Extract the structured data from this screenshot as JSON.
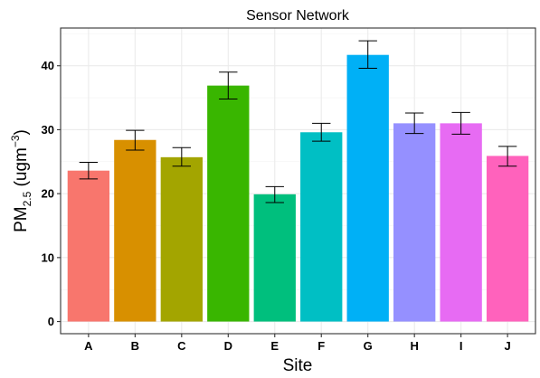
{
  "chart_data": {
    "type": "bar",
    "title": "Sensor Network",
    "xlabel": "Site",
    "ylabel": {
      "main": "PM",
      "sub": "2.5",
      "unit_open": " (ugm",
      "unit_sup": "−3",
      "unit_close": ")"
    },
    "categories": [
      "A",
      "B",
      "C",
      "D",
      "E",
      "F",
      "G",
      "H",
      "I",
      "J"
    ],
    "values": [
      23.6,
      28.4,
      25.7,
      36.9,
      19.9,
      29.6,
      41.7,
      31.0,
      31.0,
      25.9
    ],
    "error_lower": [
      22.3,
      26.8,
      24.3,
      34.8,
      18.6,
      28.2,
      39.6,
      29.4,
      29.3,
      24.3
    ],
    "error_upper": [
      24.9,
      29.9,
      27.2,
      39.0,
      21.1,
      31.0,
      43.9,
      32.6,
      32.7,
      27.4
    ],
    "colors": [
      "#F8766D",
      "#D89000",
      "#A3A500",
      "#39B600",
      "#00BF7D",
      "#00BFC4",
      "#00B0F6",
      "#9590FF",
      "#E76BF3",
      "#FF62BC"
    ],
    "ylim": [
      -1.9,
      45.9
    ],
    "yticks": [
      0,
      10,
      20,
      30,
      40
    ],
    "grid": true,
    "legend": "none"
  }
}
